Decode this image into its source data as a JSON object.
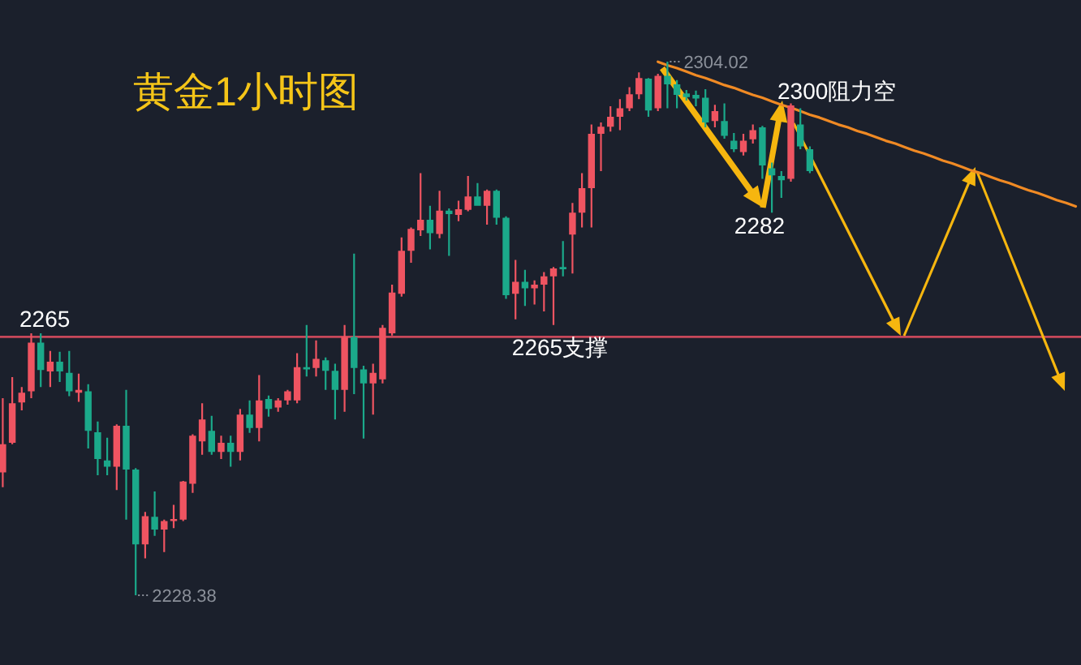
{
  "chart_data": {
    "type": "candlestick",
    "title": "黄金1小时图",
    "categories": [
      null,
      null,
      null,
      null,
      null,
      null,
      null,
      null,
      null,
      null,
      null,
      null,
      null,
      null,
      null,
      null,
      null,
      null,
      null,
      null,
      null,
      null,
      null,
      null,
      null,
      null,
      null,
      null,
      null,
      null,
      null,
      null,
      null,
      null,
      null,
      null,
      null,
      null,
      null,
      null,
      null,
      null,
      null,
      null,
      null,
      null,
      null,
      null,
      null,
      null,
      null,
      null,
      null,
      null,
      null,
      null,
      null,
      null,
      null,
      null,
      null,
      null,
      null,
      null,
      null,
      null,
      null,
      null,
      null,
      null,
      null,
      null,
      null,
      null,
      null,
      null,
      null,
      null,
      null,
      null,
      null,
      null,
      null,
      null,
      null,
      null,
      null,
      null,
      null,
      null,
      null,
      null,
      null,
      null,
      null,
      null,
      null,
      null,
      null,
      null,
      null,
      null,
      null,
      null,
      null,
      null,
      null,
      null,
      null,
      null,
      null,
      null,
      null,
      null
    ],
    "ohlc": [
      [
        2245.8,
        2256.3,
        2243.7,
        2249.8
      ],
      [
        2250.0,
        2259.3,
        2249.8,
        2255.6
      ],
      [
        2255.7,
        2257.9,
        2254.6,
        2257.1
      ],
      [
        2257.3,
        2265.5,
        2256.3,
        2264.2
      ],
      [
        2264.2,
        2265.5,
        2257.9,
        2260.3
      ],
      [
        2260.1,
        2263.0,
        2257.9,
        2261.5
      ],
      [
        2261.5,
        2262.9,
        2258.6,
        2260.1
      ],
      [
        2259.9,
        2263.0,
        2256.6,
        2257.3
      ],
      [
        2257.1,
        2259.8,
        2255.8,
        2257.5
      ],
      [
        2257.3,
        2258.3,
        2249.2,
        2251.7
      ],
      [
        2251.5,
        2253.0,
        2245.4,
        2247.7
      ],
      [
        2247.5,
        2250.7,
        2245.4,
        2246.6
      ],
      [
        2246.6,
        2252.6,
        2243.3,
        2252.4
      ],
      [
        2252.4,
        2257.5,
        2239.1,
        2246.2
      ],
      [
        2246.2,
        2246.4,
        2228.38,
        2235.6
      ],
      [
        2235.6,
        2240.2,
        2233.6,
        2239.6
      ],
      [
        2239.5,
        2243.1,
        2236.8,
        2237.7
      ],
      [
        2237.7,
        2239.1,
        2234.5,
        2238.9
      ],
      [
        2238.9,
        2241.2,
        2237.9,
        2239.2
      ],
      [
        2239.1,
        2244.6,
        2238.9,
        2244.5
      ],
      [
        2244.2,
        2251.2,
        2242.9,
        2251.0
      ],
      [
        2250.2,
        2255.6,
        2248.3,
        2253.3
      ],
      [
        2251.7,
        2253.8,
        2248.3,
        2248.7
      ],
      [
        2248.7,
        2251.0,
        2247.7,
        2250.0
      ],
      [
        2250.0,
        2251.0,
        2246.6,
        2248.7
      ],
      [
        2248.7,
        2254.8,
        2247.5,
        2254.0
      ],
      [
        2254.0,
        2256.0,
        2251.4,
        2252.1
      ],
      [
        2252.1,
        2259.6,
        2250.2,
        2256.0
      ],
      [
        2256.2,
        2256.7,
        2253.7,
        2254.8
      ],
      [
        2255.0,
        2256.3,
        2254.4,
        2256.0
      ],
      [
        2256.0,
        2257.5,
        2255.4,
        2257.3
      ],
      [
        2256.0,
        2262.7,
        2255.6,
        2260.7
      ],
      [
        2260.7,
        2266.7,
        2259.4,
        2260.4
      ],
      [
        2260.6,
        2264.5,
        2259.4,
        2261.9
      ],
      [
        2261.7,
        2262.1,
        2257.5,
        2260.2
      ],
      [
        2260.2,
        2261.2,
        2253.3,
        2257.5
      ],
      [
        2257.5,
        2266.7,
        2254.4,
        2265.0
      ],
      [
        2265.0,
        2276.8,
        2256.9,
        2260.6
      ],
      [
        2260.4,
        2260.9,
        2250.6,
        2258.4
      ],
      [
        2258.4,
        2261.2,
        2254.0,
        2259.9
      ],
      [
        2259.0,
        2266.7,
        2258.4,
        2266.3
      ],
      [
        2265.5,
        2272.4,
        2265.2,
        2271.3
      ],
      [
        2271.1,
        2279.1,
        2270.7,
        2277.2
      ],
      [
        2277.2,
        2280.5,
        2275.5,
        2280.3
      ],
      [
        2280.1,
        2288.2,
        2279.3,
        2281.6
      ],
      [
        2281.6,
        2283.6,
        2277.4,
        2279.7
      ],
      [
        2279.6,
        2285.7,
        2279.0,
        2282.9
      ],
      [
        2282.9,
        2283.2,
        2276.5,
        2282.4
      ],
      [
        2282.3,
        2284.3,
        2281.4,
        2283.1
      ],
      [
        2283.0,
        2287.8,
        2282.8,
        2284.9
      ],
      [
        2284.9,
        2286.8,
        2283.6,
        2283.6
      ],
      [
        2283.6,
        2285.9,
        2280.9,
        2285.7
      ],
      [
        2285.7,
        2285.9,
        2280.9,
        2281.9
      ],
      [
        2281.9,
        2282.1,
        2270.4,
        2270.9
      ],
      [
        2271.1,
        2275.9,
        2267.5,
        2272.8
      ],
      [
        2272.8,
        2274.5,
        2269.4,
        2271.9
      ],
      [
        2271.9,
        2273.0,
        2269.6,
        2272.4
      ],
      [
        2272.4,
        2274.2,
        2268.6,
        2273.6
      ],
      [
        2273.6,
        2274.9,
        2266.7,
        2274.7
      ],
      [
        2274.9,
        2278.6,
        2273.6,
        2274.6
      ],
      [
        2279.5,
        2284.0,
        2274.0,
        2282.6
      ],
      [
        2282.6,
        2288.2,
        2280.5,
        2286.1
      ],
      [
        2286.1,
        2295.1,
        2280.5,
        2293.8
      ],
      [
        2293.8,
        2295.4,
        2288.5,
        2294.8
      ],
      [
        2294.8,
        2297.7,
        2294.1,
        2296.2
      ],
      [
        2296.2,
        2298.7,
        2294.3,
        2297.4
      ],
      [
        2297.4,
        2300.4,
        2297.0,
        2299.4
      ],
      [
        2299.4,
        2302.5,
        2298.7,
        2301.7
      ],
      [
        2301.6,
        2301.7,
        2296.2,
        2297.1
      ],
      [
        2297.4,
        2302.3,
        2297.0,
        2302.0
      ],
      [
        2302.0,
        2304.02,
        2297.4,
        2300.8
      ],
      [
        2300.8,
        2301.4,
        2297.4,
        2299.3
      ],
      [
        2299.5,
        2300.0,
        2298.5,
        2299.0
      ],
      [
        2299.3,
        2299.9,
        2297.7,
        2298.8
      ],
      [
        2298.9,
        2300.1,
        2294.7,
        2295.4
      ],
      [
        2295.6,
        2297.9,
        2294.7,
        2297.0
      ],
      [
        2295.6,
        2298.1,
        2293.1,
        2293.5
      ],
      [
        2292.8,
        2293.9,
        2291.2,
        2291.6
      ],
      [
        2291.2,
        2293.8,
        2290.7,
        2292.8
      ],
      [
        2293.0,
        2295.1,
        2292.4,
        2294.3
      ],
      [
        2294.7,
        2294.9,
        2287.4,
        2289.3
      ],
      [
        2288.9,
        2289.7,
        2282.6,
        2287.9
      ],
      [
        2287.8,
        2288.5,
        2284.7,
        2287.2
      ],
      [
        2287.4,
        2298.1,
        2287.0,
        2297.8
      ],
      [
        2295.1,
        2297.4,
        2291.6,
        2292.0
      ],
      [
        2291.6,
        2292.0,
        2288.2,
        2288.5
      ],
      null,
      null,
      null,
      null,
      null,
      null,
      null,
      null,
      null,
      null,
      null,
      null,
      null,
      null,
      null,
      null,
      null,
      null,
      null,
      null,
      null,
      null,
      null,
      null,
      null,
      null,
      null,
      null
    ],
    "colors": [
      "#ef5461",
      "#ef5461",
      "#ef5461",
      "#ef5461",
      "#1ba98a",
      "#ef5461",
      "#1ba98a",
      "#1ba98a",
      "#ef5461",
      "#1ba98a",
      "#1ba98a",
      "#1ba98a",
      "#ef5461",
      "#1ba98a",
      "#1ba98a",
      "#ef5461",
      "#1ba98a",
      "#ef5461",
      "#ef5461",
      "#ef5461",
      "#ef5461",
      "#ef5461",
      "#1ba98a",
      "#ef5461",
      "#1ba98a",
      "#ef5461",
      "#1ba98a",
      "#ef5461",
      "#1ba98a",
      "#ef5461",
      "#ef5461",
      "#ef5461",
      "#1ba98a",
      "#ef5461",
      "#1ba98a",
      "#1ba98a",
      "#ef5461",
      "#1ba98a",
      "#1ba98a",
      "#ef5461",
      "#ef5461",
      "#ef5461",
      "#ef5461",
      "#ef5461",
      "#ef5461",
      "#1ba98a",
      "#ef5461",
      "#1ba98a",
      "#ef5461",
      "#ef5461",
      "#1ba98a",
      "#ef5461",
      "#1ba98a",
      "#1ba98a",
      "#ef5461",
      "#1ba98a",
      "#ef5461",
      "#ef5461",
      "#ef5461",
      "#1ba98a",
      "#ef5461",
      "#ef5461",
      "#ef5461",
      "#ef5461",
      "#ef5461",
      "#ef5461",
      "#ef5461",
      "#ef5461",
      "#1ba98a",
      "#ef5461",
      "#1ba98a",
      "#1ba98a",
      "#1ba98a",
      "#1ba98a",
      "#1ba98a",
      "#ef5461",
      "#1ba98a",
      "#1ba98a",
      "#ef5461",
      "#ef5461",
      "#1ba98a",
      "#1ba98a",
      "#1ba98a",
      "#ef5461",
      "#1ba98a",
      "#1ba98a",
      null,
      null,
      null,
      null,
      null,
      null,
      null,
      null,
      null,
      null,
      null,
      null,
      null,
      null,
      null,
      null,
      null,
      null,
      null,
      null,
      null,
      null,
      null,
      null,
      null,
      null,
      null,
      null
    ],
    "series": [
      {
        "type": "line",
        "color": "#f08a24",
        "values": [
          null,
          null,
          null,
          null,
          null,
          null,
          null,
          null,
          null,
          null,
          null,
          null,
          null,
          null,
          null,
          null,
          null,
          null,
          null,
          null,
          null,
          null,
          null,
          null,
          null,
          null,
          null,
          null,
          null,
          null,
          null,
          null,
          null,
          null,
          null,
          null,
          null,
          null,
          null,
          null,
          null,
          null,
          null,
          null,
          null,
          null,
          null,
          null,
          null,
          null,
          null,
          null,
          null,
          null,
          null,
          null,
          null,
          null,
          null,
          null,
          null,
          null,
          null,
          null,
          null,
          null,
          null,
          null,
          null,
          2304.0,
          2303.5,
          2303.1,
          2302.6,
          2302.1,
          2301.7,
          2301.2,
          2300.7,
          2300.3,
          2299.8,
          2299.3,
          2298.9,
          2298.4,
          2297.9,
          2297.5,
          2297.0,
          2296.5,
          2296.1,
          2295.6,
          2295.1,
          2294.7,
          2294.2,
          2293.8,
          2293.3,
          2292.8,
          2292.4,
          2291.9,
          2291.4,
          2291.0,
          2290.5,
          2290.0,
          2289.6,
          2289.1,
          2288.6,
          2288.2,
          2287.7,
          2287.2,
          2286.8,
          2286.3,
          2285.8,
          2285.4,
          2284.9,
          2284.4,
          2284.0,
          2283.5
        ]
      }
    ],
    "ref_lines": [
      {
        "axis": "y",
        "value": 2265,
        "label": "2265",
        "color": "#c8485a"
      }
    ],
    "annotations": [
      "2304.02",
      "2300阻力空",
      "2282",
      "2265支撑",
      "2228.38"
    ]
  }
}
